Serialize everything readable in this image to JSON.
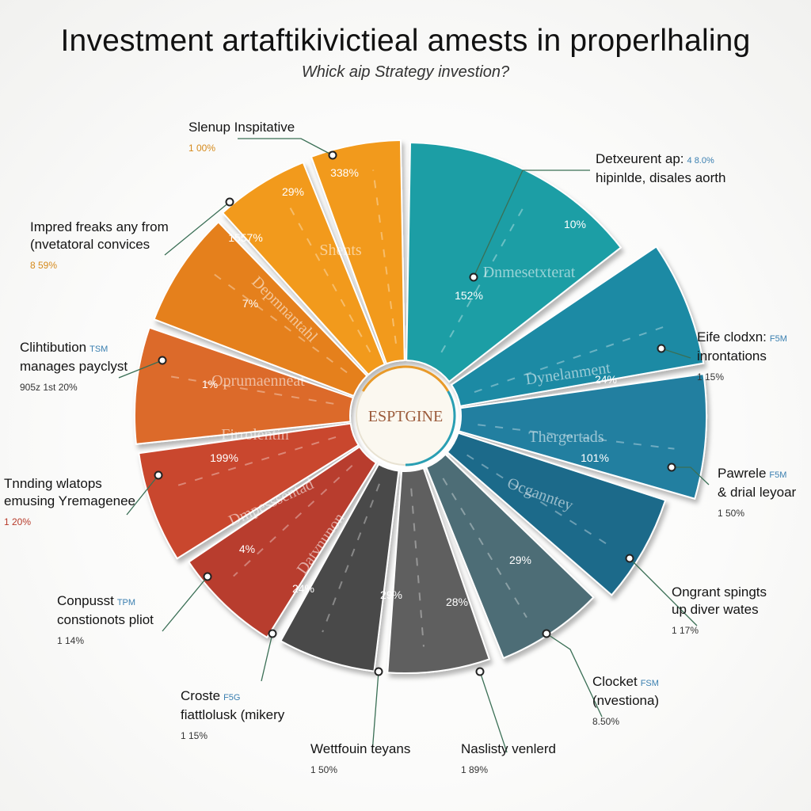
{
  "title": "Investment artaftikivictieal amests in properlhaling",
  "subtitle": "Whick aip Strategy investion?",
  "center_label": "ESPTGINE",
  "colors": {
    "orange": "#f29a1a",
    "orange_dark": "#e5801e",
    "burnt": "#dc6a2a",
    "red": "#c9462f",
    "red_dark": "#b83c2d",
    "gray_dark": "#494949",
    "gray": "#5f5f5f",
    "slate": "#4e6d76",
    "teal": "#1e9ea5",
    "teal_mid": "#1a8aa4",
    "blue": "#237fa0",
    "blue_dark": "#1a6b8a"
  },
  "chart_data": {
    "type": "pie",
    "title": "Investment artaftikivictieal amests in properlhaling",
    "subtitle": "Whick aip Strategy investion?",
    "center_text": "ESPTGINE",
    "slices": [
      {
        "inner_label": "Dnmesetxterat",
        "value_label": "152%"
      },
      {
        "inner_label": "",
        "value_label": "10%"
      },
      {
        "inner_label": "Dynelanment",
        "value_label": "24%"
      },
      {
        "inner_label": "Thergertads",
        "value_label": "101%"
      },
      {
        "inner_label": "Ocganntey",
        "value_label": "29%"
      },
      {
        "inner_label": "",
        "value_label": "28%"
      },
      {
        "inner_label": "",
        "value_label": "29%"
      },
      {
        "inner_label": "Datvnunon",
        "value_label": "24%"
      },
      {
        "inner_label": "Dmpesssentad",
        "value_label": "4%"
      },
      {
        "inner_label": "Firrolentin",
        "value_label": "199%"
      },
      {
        "inner_label": "Oprumaenneat",
        "value_label": "1%"
      },
      {
        "inner_label": "Depmnantahl",
        "value_label": "7%"
      },
      {
        "inner_label": "",
        "value_label": "1557%"
      },
      {
        "inner_label": "",
        "value_label": "29%"
      },
      {
        "inner_label": "Shents",
        "value_label": "338%"
      }
    ],
    "callouts": [
      {
        "line1": "Detxeurent ap:",
        "tag": "4 8.0%",
        "line2": "hipinlde, disales aorth",
        "pct": ""
      },
      {
        "line1": "Eife clodxn:",
        "tag": "F5M",
        "line2": "inrontations",
        "pct": "1 15%"
      },
      {
        "line1": "Pawrele",
        "tag": "F5M",
        "line2": "& drial leyoar",
        "pct": "1 50%"
      },
      {
        "line1": "Ongrant spingts",
        "tag": "",
        "line2": "up diver wates",
        "pct": "1 17%"
      },
      {
        "line1": "Clocket",
        "tag": "FSM",
        "line2": "(nvestiona)",
        "pct": "8.50%"
      },
      {
        "line1": "Naslisty venlerd",
        "tag": "",
        "line2": "",
        "pct": "1 89%"
      },
      {
        "line1": "Wettfouin teyans",
        "tag": "",
        "line2": "",
        "pct": "1 50%"
      },
      {
        "line1": "Croste",
        "tag": "F5G",
        "line2": "fiattlolusk (mikery",
        "pct": "1 15%"
      },
      {
        "line1": "Conpusst",
        "tag": "TPM",
        "line2": "constionots pliot",
        "pct": "1 14%"
      },
      {
        "line1": "Tnnding wlatops",
        "tag": "",
        "line2": "emusing Yremagenee",
        "pct": "1 20%"
      },
      {
        "line1": "Clihtibution",
        "tag": "TSM",
        "line2": "manages payclyst",
        "pct": "905z 1st 20%"
      },
      {
        "line1": "Impred freaks any from",
        "tag": "",
        "line2": "(nvetatoral convices",
        "pct": "8 59%"
      },
      {
        "line1": "Slenup Inspitative",
        "tag": "",
        "line2": "",
        "pct": "1 00%"
      }
    ]
  }
}
